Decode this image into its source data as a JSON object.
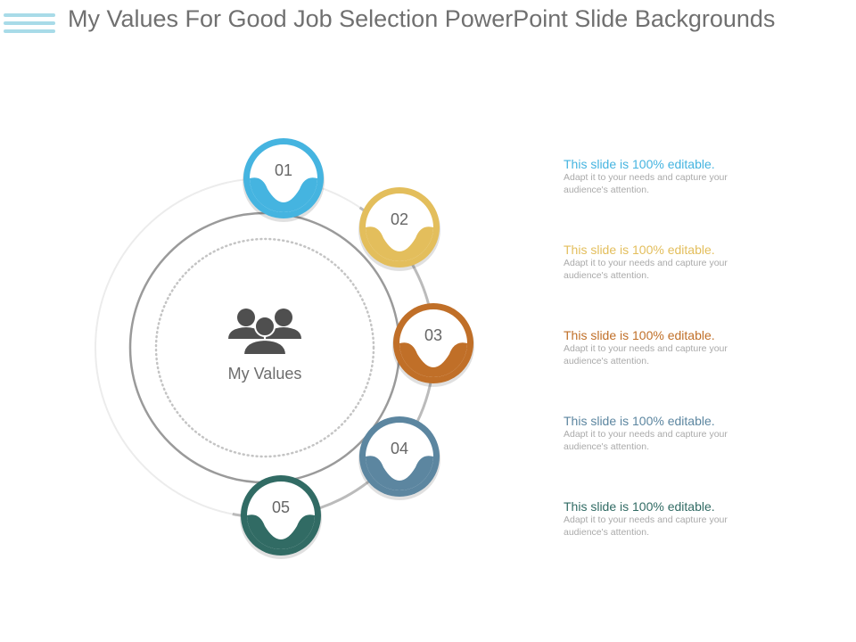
{
  "title": "My Values For Good Job Selection PowerPoint Slide Backgrounds",
  "center": {
    "label": "My Values",
    "icon": "people-group-icon"
  },
  "steps": [
    {
      "number": "01",
      "color": "#45b4e0",
      "heading": "This slide is 100% editable.",
      "desc": "Adapt it to your needs and capture your audience's attention."
    },
    {
      "number": "02",
      "color": "#e3be5c",
      "heading": "This slide is 100% editable.",
      "desc": "Adapt it to your needs and capture your audience's attention."
    },
    {
      "number": "03",
      "color": "#c06f28",
      "heading": "This slide is 100% editable.",
      "desc": "Adapt it to your needs and capture your audience's attention."
    },
    {
      "number": "04",
      "color": "#5c86a0",
      "heading": "This slide is 100% editable.",
      "desc": "Adapt it to your needs and capture your audience's attention."
    },
    {
      "number": "05",
      "color": "#316b64",
      "heading": "This slide is 100% editable.",
      "desc": "Adapt it to your needs and capture your audience's attention."
    }
  ]
}
